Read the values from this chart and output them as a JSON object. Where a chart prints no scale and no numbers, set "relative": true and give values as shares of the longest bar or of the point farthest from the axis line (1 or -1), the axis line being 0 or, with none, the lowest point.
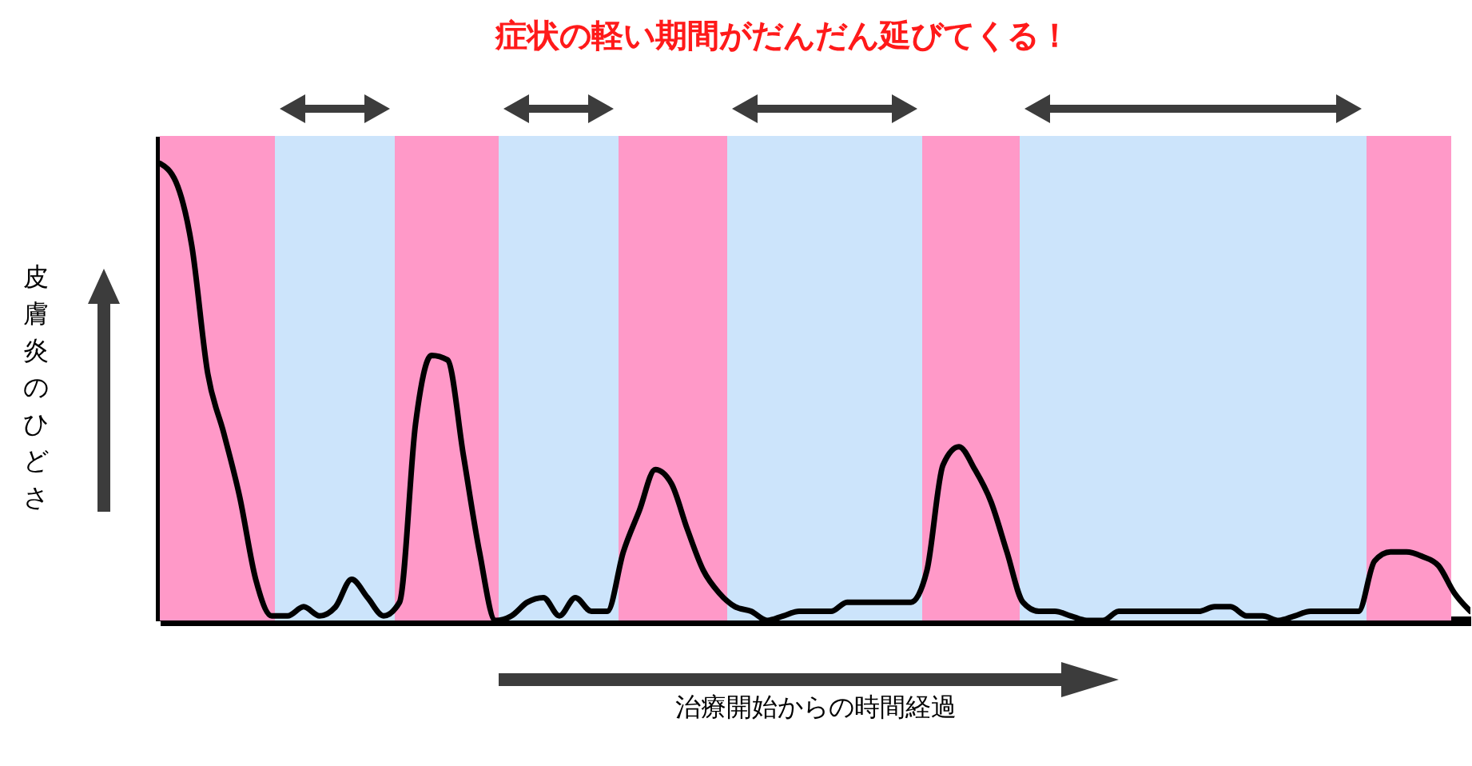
{
  "chart_data": {
    "type": "line",
    "title": "症状の軽い期間がだんだん延びてくる！",
    "xlabel": "治療開始からの時間経過",
    "ylabel": "皮膚炎のひどさ",
    "relative": true,
    "categories": [
      null,
      null,
      null,
      null,
      null,
      null,
      null,
      null,
      null,
      null,
      null,
      null,
      null,
      null,
      null,
      null,
      null,
      null,
      null,
      null,
      null,
      null,
      null,
      null,
      null,
      null,
      null,
      null,
      null,
      null,
      null,
      null,
      null,
      null,
      null,
      null,
      null,
      null,
      null,
      null,
      null,
      null,
      null,
      null,
      null,
      null,
      null,
      null,
      null,
      null,
      null,
      null,
      null,
      null,
      null,
      null,
      null,
      null,
      null,
      null,
      null,
      null,
      null,
      null,
      null,
      null,
      null,
      null,
      null,
      null,
      null,
      null,
      null,
      null,
      null,
      null,
      null,
      null,
      null,
      null,
      null,
      null,
      null
    ],
    "series": [
      {
        "color": "#000000",
        "values": [
          1.0,
          0.96,
          0.82,
          0.54,
          0.41,
          0.27,
          0.09,
          0.01,
          0.01,
          0.03,
          0.01,
          0.03,
          0.09,
          0.05,
          0.01,
          0.04,
          0.43,
          0.58,
          0.57,
          0.36,
          0.15,
          0,
          0.01,
          0.04,
          0.05,
          0.01,
          0.05,
          0.02,
          0.02,
          0.15,
          0.24,
          0.33,
          0.3,
          0.2,
          0.11,
          0.06,
          0.03,
          0.02,
          0,
          0.01,
          0.02,
          0.02,
          0.02,
          0.04,
          0.04,
          0.04,
          0.04,
          0.04,
          0.11,
          0.34,
          0.38,
          0.33,
          0.26,
          0.15,
          0.04,
          0.02,
          0.02,
          0.01,
          0,
          0,
          0.02,
          0.02,
          0.02,
          0.02,
          0.02,
          0.02,
          0.03,
          0.03,
          0.01,
          0.01,
          0,
          0.01,
          0.02,
          0.02,
          0.02,
          0.02,
          0.13,
          0.15,
          0.15,
          0.14,
          0.12,
          0.06,
          0.02
        ]
      }
    ]
  }
}
